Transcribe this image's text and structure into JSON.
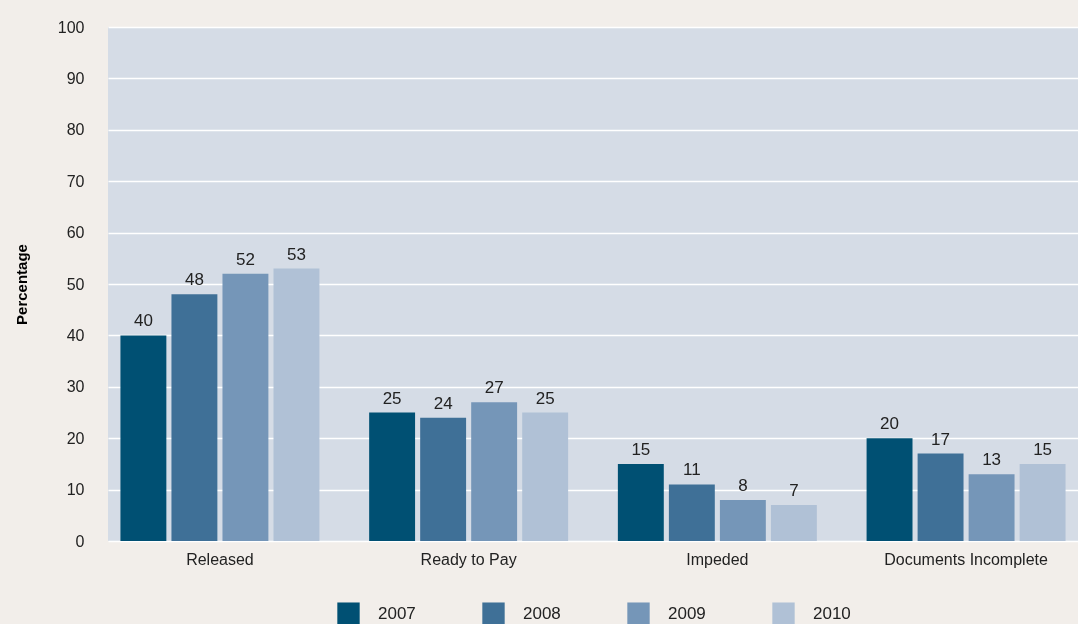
{
  "chart_data": {
    "type": "bar",
    "ylabel": "Percentage",
    "categories": [
      "Released",
      "Ready to Pay",
      "Impeded",
      "Documents Incomplete"
    ],
    "series": [
      {
        "name": "2007",
        "color": "#005073",
        "values": [
          40,
          25,
          15,
          20
        ]
      },
      {
        "name": "2008",
        "color": "#3f7097",
        "values": [
          48,
          24,
          11,
          17
        ]
      },
      {
        "name": "2009",
        "color": "#7596b8",
        "values": [
          52,
          27,
          8,
          13
        ]
      },
      {
        "name": "2010",
        "color": "#b0c1d6",
        "values": [
          53,
          25,
          7,
          15
        ]
      }
    ],
    "ylim": [
      0,
      100
    ],
    "yticks": [
      0,
      10,
      20,
      30,
      40,
      50,
      60,
      70,
      80,
      90,
      100
    ],
    "grid": "y",
    "legend": "bottom",
    "data_labels": true
  }
}
